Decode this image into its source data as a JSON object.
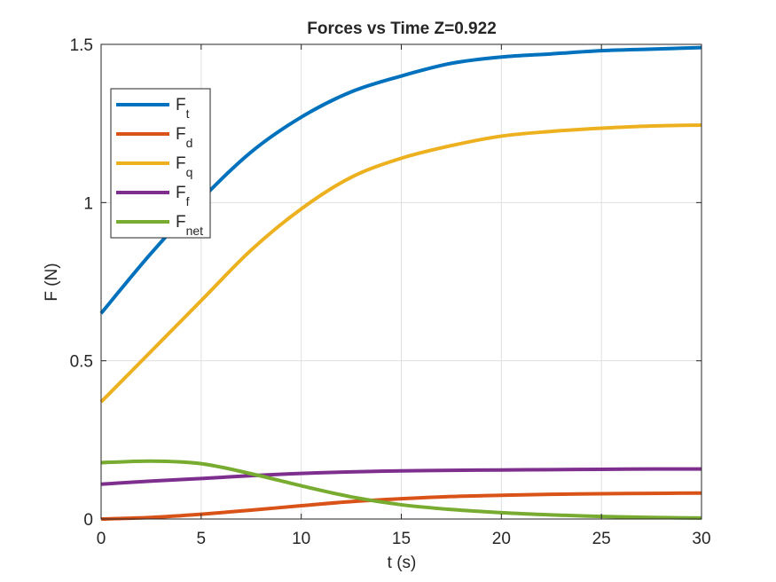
{
  "chart_data": {
    "type": "line",
    "title": "Forces vs Time Z=0.922",
    "xlabel": "t (s)",
    "ylabel": "F (N)",
    "xlim": [
      0,
      30
    ],
    "ylim": [
      0,
      1.5
    ],
    "xticks": [
      "0",
      "5",
      "10",
      "15",
      "20",
      "25",
      "30"
    ],
    "yticks": [
      "0",
      "0.5",
      "1",
      "1.5"
    ],
    "xtick_values": [
      0,
      5,
      10,
      15,
      20,
      25,
      30
    ],
    "ytick_values": [
      0,
      0.5,
      1,
      1.5
    ],
    "grid": true,
    "legend_position": "top-left",
    "x": [
      0,
      2.5,
      5,
      7.5,
      10,
      12.5,
      15,
      17.5,
      20,
      22.5,
      25,
      27.5,
      30
    ],
    "series": [
      {
        "name": "F",
        "subscript": "t",
        "color": "#0072BD",
        "values": [
          0.65,
          0.84,
          1.01,
          1.16,
          1.27,
          1.35,
          1.4,
          1.44,
          1.46,
          1.47,
          1.48,
          1.485,
          1.49
        ]
      },
      {
        "name": "F",
        "subscript": "d",
        "color": "#D95319",
        "values": [
          0.0,
          0.005,
          0.015,
          0.028,
          0.042,
          0.055,
          0.064,
          0.071,
          0.075,
          0.078,
          0.08,
          0.081,
          0.082
        ]
      },
      {
        "name": "F",
        "subscript": "q",
        "color": "#EDB120",
        "values": [
          0.37,
          0.53,
          0.69,
          0.85,
          0.98,
          1.08,
          1.14,
          1.18,
          1.21,
          1.225,
          1.235,
          1.242,
          1.245
        ]
      },
      {
        "name": "F",
        "subscript": "f",
        "color": "#7E2F8E",
        "values": [
          0.11,
          0.12,
          0.128,
          0.137,
          0.144,
          0.149,
          0.152,
          0.154,
          0.155,
          0.156,
          0.157,
          0.158,
          0.158
        ]
      },
      {
        "name": "F",
        "subscript": "net",
        "color": "#77AC30",
        "values": [
          0.178,
          0.183,
          0.175,
          0.143,
          0.105,
          0.07,
          0.045,
          0.03,
          0.02,
          0.013,
          0.008,
          0.005,
          0.003
        ]
      }
    ]
  }
}
